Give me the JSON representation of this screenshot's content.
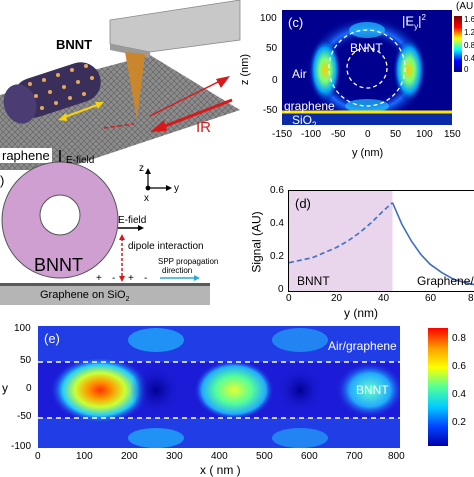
{
  "panel_a": {
    "label_bnnt": "BNNT",
    "label_ir": "IR",
    "label_graphene": "raphene"
  },
  "panel_b": {
    "panel_label": ")",
    "efield_top": "E-field",
    "efield_side": "E-field",
    "dipole": "dipole interaction",
    "spp_line1": "SPP propagation",
    "spp_line2": "direction",
    "bnnt": "BNNT",
    "substrate": "Graphene on SiO",
    "substrate_sub": "2",
    "axis_z": "z",
    "axis_x": "x",
    "axis_y": "y",
    "charges": [
      "+",
      "-",
      "+",
      "-"
    ]
  },
  "panel_c": {
    "panel_label": "(c)",
    "field_label": "|E",
    "field_label_sub": "y",
    "field_label_sup": "2",
    "field_label_end": "|",
    "air": "Air",
    "bnnt": "BNNT",
    "graphene": "graphene",
    "sio2": "SiO",
    "sio2_sub": "2",
    "ylabel": "z (nm)",
    "xlabel": "y (nm)",
    "xticks": [
      "-150",
      "-100",
      "-50",
      "0",
      "50",
      "100",
      "150"
    ],
    "yticks": [
      "100",
      "50",
      "0",
      "-50"
    ],
    "colorbar_title": "(AU",
    "colorbar_ticks": [
      "1.6",
      "1.2",
      "0.8",
      "0.4",
      "0"
    ]
  },
  "panel_d": {
    "panel_label": "(d)",
    "ylabel": "Signal (AU)",
    "xlabel": "y (nm)",
    "xticks": [
      "0",
      "20",
      "40",
      "60",
      "80"
    ],
    "yticks": [
      "0.6",
      "0.4",
      "0.2",
      "0"
    ],
    "region_bnnt": "BNNT",
    "region_right": "Graphene/a"
  },
  "panel_e": {
    "panel_label": "(e)",
    "air_graphene": "Air/graphene",
    "bnnt": "BNNT",
    "xlabel": "x ( nm )",
    "ylabel": "y",
    "xticks": [
      "0",
      "100",
      "200",
      "300",
      "400",
      "500",
      "600",
      "700",
      "800"
    ],
    "yticks": [
      "100",
      "50",
      "0",
      "-50",
      "-100"
    ],
    "colorbar_ticks": [
      "0.8",
      "0.6",
      "0.4",
      "0.2"
    ]
  },
  "chart_data": [
    {
      "type": "line",
      "panel": "d",
      "xlabel": "y (nm)",
      "ylabel": "Signal (AU)",
      "xlim": [
        0,
        85
      ],
      "ylim": [
        0,
        0.6
      ],
      "series": [
        {
          "style": "dashed",
          "x": [
            0,
            5,
            10,
            15,
            20,
            25,
            30,
            35,
            40,
            44
          ],
          "y": [
            0.17,
            0.185,
            0.2,
            0.23,
            0.26,
            0.3,
            0.35,
            0.41,
            0.48,
            0.53
          ]
        },
        {
          "style": "solid",
          "x": [
            44,
            48,
            52,
            56,
            60,
            65,
            70,
            75,
            80,
            85
          ],
          "y": [
            0.53,
            0.4,
            0.3,
            0.22,
            0.16,
            0.11,
            0.07,
            0.05,
            0.035,
            0.025
          ]
        }
      ]
    }
  ],
  "colors": {
    "jet_dark_blue": "#00008f",
    "bnnt_pink": "#cf9fd1",
    "bnnt_region": "#ead6ec",
    "line_blue": "#3f6fc4",
    "ir_red": "#d7191c",
    "graphene_yellow": "#ffe600"
  }
}
